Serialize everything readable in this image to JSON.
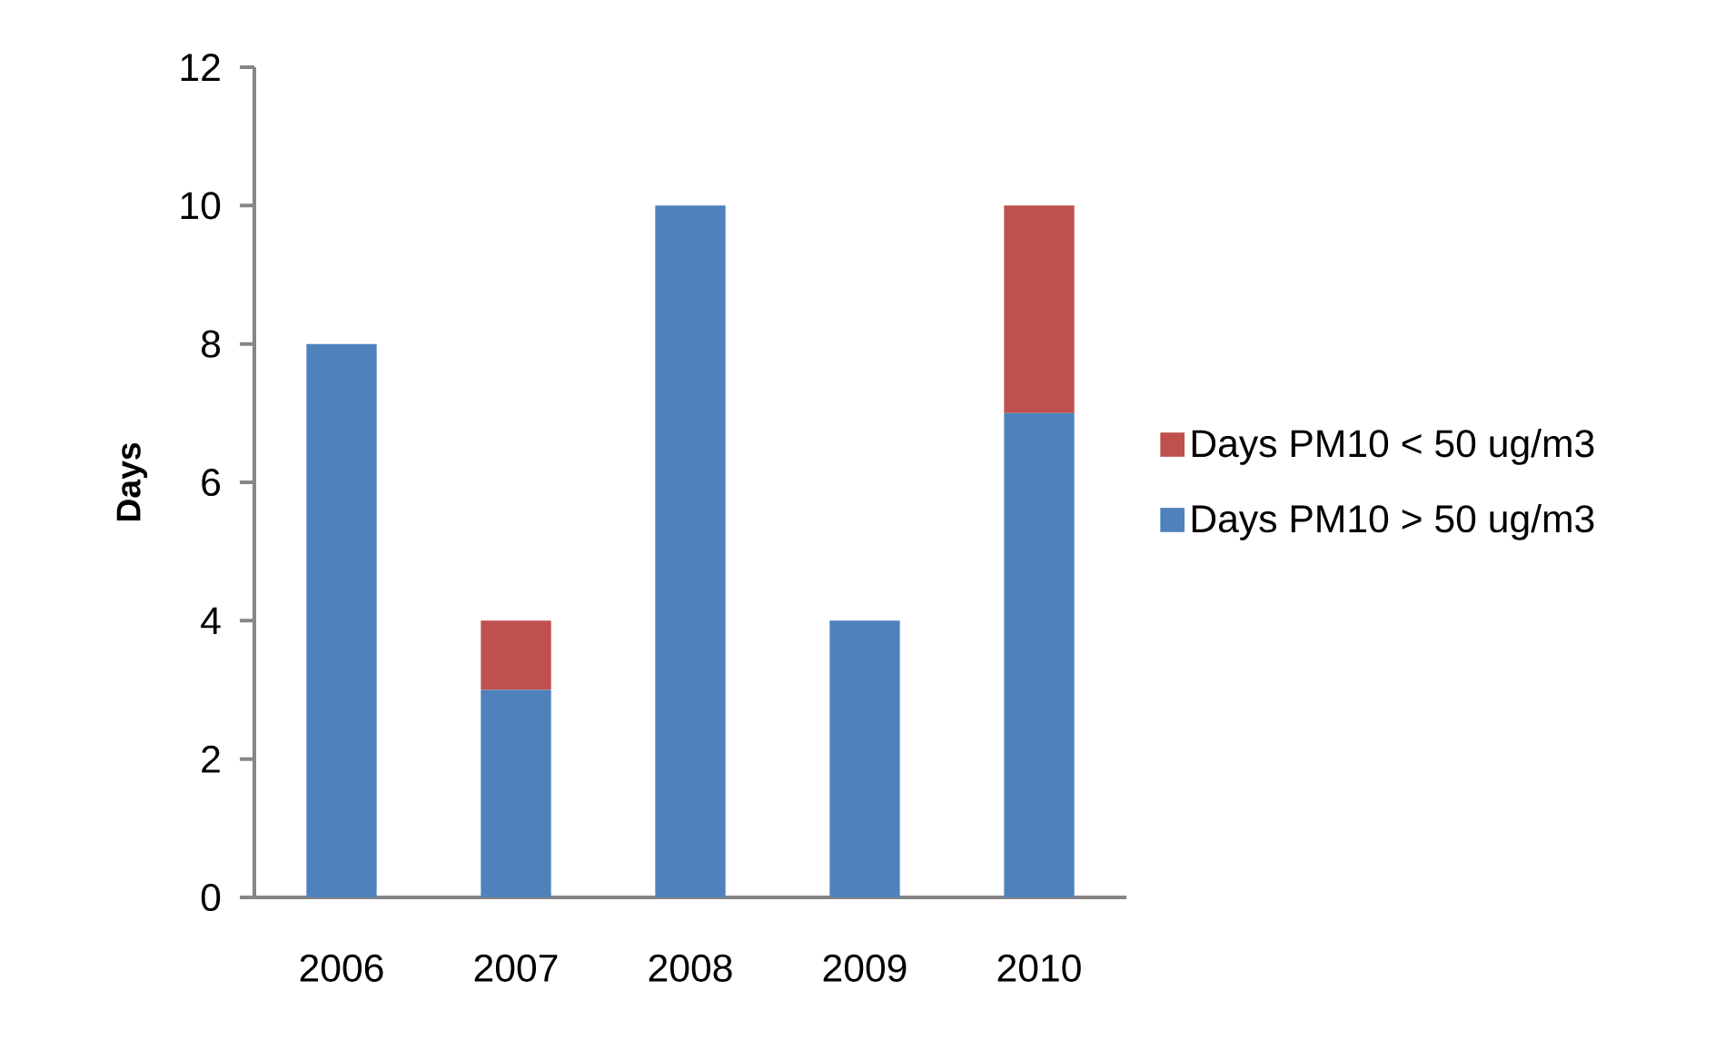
{
  "chart_data": {
    "type": "bar",
    "stacked": true,
    "ylabel": "Days",
    "categories": [
      "2006",
      "2007",
      "2008",
      "2009",
      "2010"
    ],
    "series": [
      {
        "name": "Days PM10 > 50 ug/m3",
        "color": "#4f81bd",
        "values": [
          8,
          3,
          10,
          4,
          7
        ]
      },
      {
        "name": "Days PM10 < 50 ug/m3",
        "color": "#c0504d",
        "values": [
          0,
          1,
          0,
          0,
          3
        ]
      }
    ],
    "ylim": [
      0,
      12
    ],
    "yticks": [
      0,
      2,
      4,
      6,
      8,
      10,
      12
    ],
    "grid": false,
    "legend": "right"
  }
}
